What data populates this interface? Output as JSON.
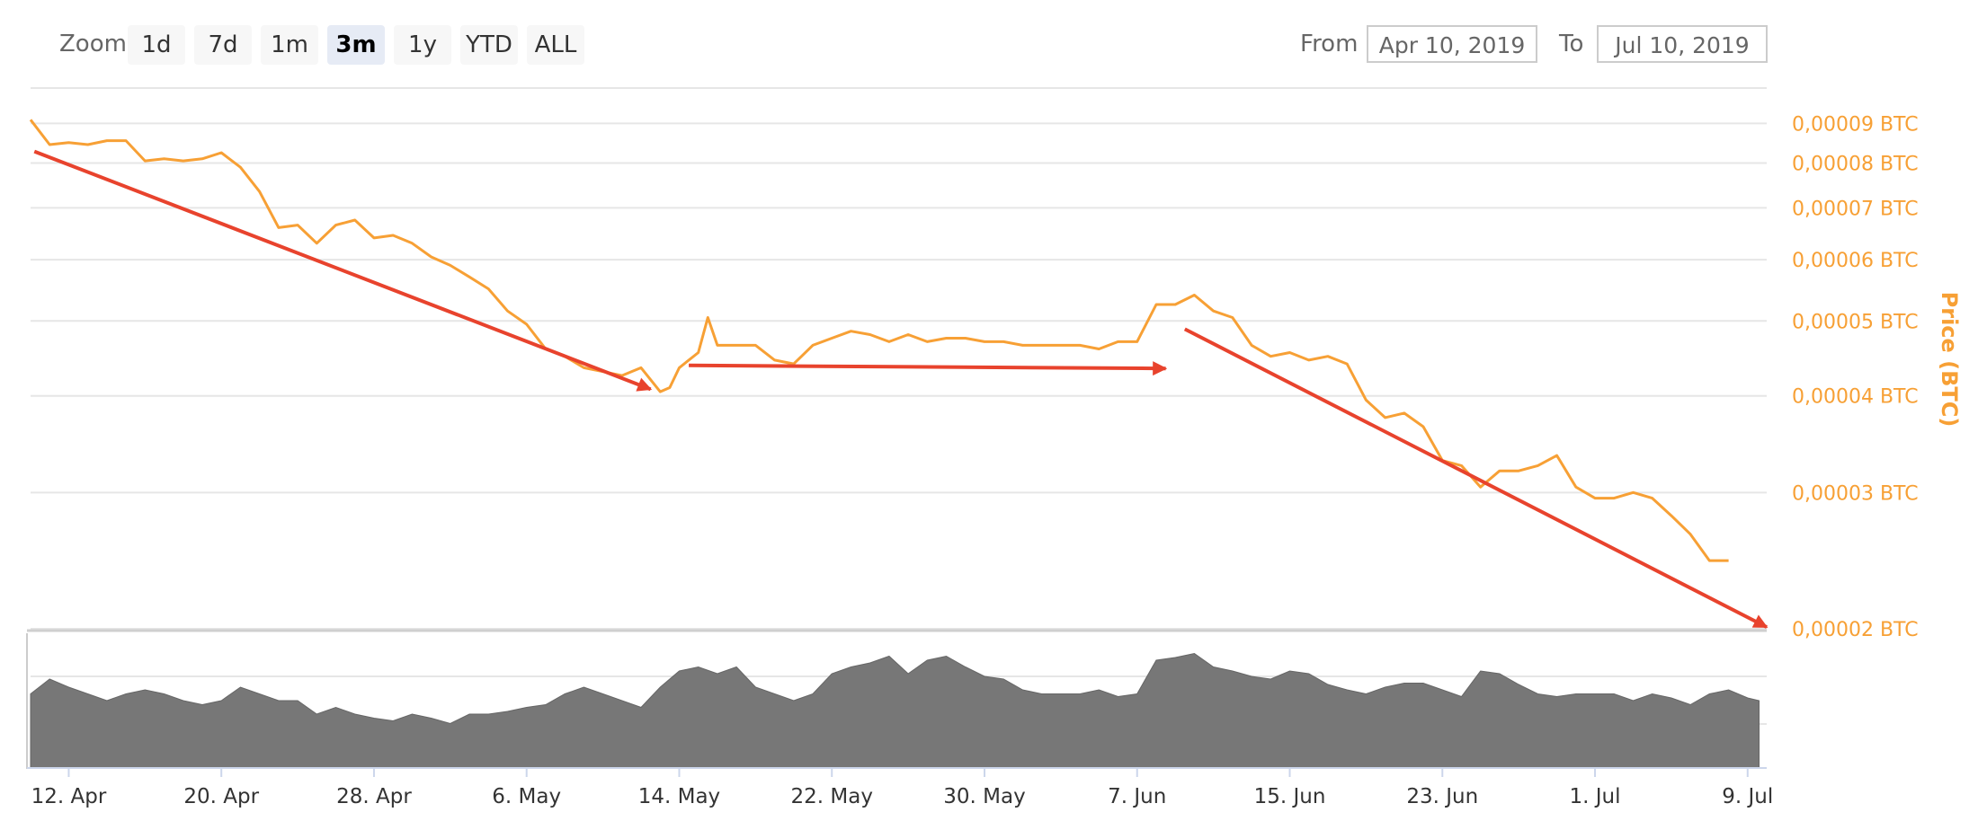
{
  "toolbar": {
    "zoom_label": "Zoom",
    "zoom_buttons": [
      "1d",
      "7d",
      "1m",
      "3m",
      "1y",
      "YTD",
      "ALL"
    ],
    "active_zoom": "3m",
    "from_label": "From",
    "from_value": "Apr 10, 2019",
    "to_label": "To",
    "to_value": "Jul 10, 2019"
  },
  "colors": {
    "price_line": "#f7a035",
    "volume": "#777777",
    "arrow": "#e8432d",
    "grid": "#e6e6e6"
  },
  "chart_data": {
    "type": "line",
    "scale": "log",
    "ylabel": "Price (BTC)",
    "y_ticks": [
      "0,00009 BTC",
      "0,00008 BTC",
      "0,00007 BTC",
      "0,00006 BTC",
      "0,00005 BTC",
      "0,00004 BTC",
      "0,00003 BTC",
      "0,00002 BTC"
    ],
    "y_tick_values": [
      9e-05,
      8e-05,
      7e-05,
      6e-05,
      5e-05,
      4e-05,
      3e-05,
      2e-05
    ],
    "ylim": [
      2e-05,
      0.0001
    ],
    "x_ticks": [
      "12. Apr",
      "20. Apr",
      "28. Apr",
      "6. May",
      "14. May",
      "22. May",
      "30. May",
      "7. Jun",
      "15. Jun",
      "23. Jun",
      "1. Jul",
      "9. Jul"
    ],
    "x_tick_days": [
      2,
      10,
      18,
      26,
      34,
      42,
      50,
      58,
      66,
      74,
      82,
      90
    ],
    "xlim_days": [
      0,
      91
    ],
    "series": [
      {
        "values_x_days": [
          0,
          1,
          2,
          3,
          4,
          5,
          6,
          7,
          8,
          9,
          10,
          11,
          12,
          13,
          14,
          15,
          16,
          17,
          18,
          19,
          20,
          21,
          22,
          23,
          24,
          25,
          26,
          27,
          28,
          29,
          30,
          31,
          32,
          33,
          33.5,
          34,
          35,
          35.5,
          36,
          37,
          38,
          39,
          40,
          41,
          42,
          43,
          44,
          45,
          46,
          47,
          48,
          49,
          50,
          51,
          52,
          53,
          54,
          55,
          56,
          57,
          58,
          59,
          60,
          61,
          62,
          63,
          64,
          65,
          66,
          67,
          68,
          69,
          70,
          71,
          72,
          73,
          74,
          75,
          76,
          77,
          78,
          79,
          80,
          81,
          82,
          83,
          84,
          85,
          86,
          87,
          88,
          89,
          90,
          90.6
        ],
        "values": [
          9.1e-05,
          8.45e-05,
          8.5e-05,
          8.45e-05,
          8.55e-05,
          8.55e-05,
          8.05e-05,
          8.1e-05,
          8.05e-05,
          8.1e-05,
          8.25e-05,
          7.9e-05,
          7.35e-05,
          6.6e-05,
          6.65e-05,
          6.3e-05,
          6.65e-05,
          6.75e-05,
          6.4e-05,
          6.45e-05,
          6.3e-05,
          6.05e-05,
          5.9e-05,
          5.7e-05,
          5.5e-05,
          5.15e-05,
          4.95e-05,
          4.6e-05,
          4.5e-05,
          4.35e-05,
          4.3e-05,
          4.25e-05,
          4.35e-05,
          4.05e-05,
          4.1e-05,
          4.35e-05,
          4.55e-05,
          5.05e-05,
          4.65e-05,
          4.65e-05,
          4.65e-05,
          4.45e-05,
          4.4e-05,
          4.65e-05,
          4.75e-05,
          4.85e-05,
          4.8e-05,
          4.7e-05,
          4.8e-05,
          4.7e-05,
          4.75e-05,
          4.75e-05,
          4.7e-05,
          4.7e-05,
          4.65e-05,
          4.65e-05,
          4.65e-05,
          4.65e-05,
          4.6e-05,
          4.7e-05,
          4.7e-05,
          5.25e-05,
          5.25e-05,
          5.4e-05,
          5.15e-05,
          5.05e-05,
          4.65e-05,
          4.5e-05,
          4.55e-05,
          4.45e-05,
          4.5e-05,
          4.4e-05,
          3.95e-05,
          3.75e-05,
          3.8e-05,
          3.65e-05,
          3.3e-05,
          3.25e-05,
          3.05e-05,
          3.2e-05,
          3.2e-05,
          3.25e-05,
          3.35e-05,
          3.05e-05,
          2.95e-05,
          2.95e-05,
          3e-05,
          2.95e-05,
          2.8e-05,
          2.65e-05,
          2.45e-05,
          2.45e-05
        ]
      }
    ],
    "volume": {
      "values_x_days": [
        0,
        1,
        2,
        3,
        4,
        5,
        6,
        7,
        8,
        9,
        10,
        11,
        12,
        13,
        14,
        15,
        16,
        17,
        18,
        19,
        20,
        21,
        22,
        23,
        24,
        25,
        26,
        27,
        28,
        29,
        30,
        31,
        32,
        33,
        34,
        35,
        36,
        37,
        38,
        39,
        40,
        41,
        42,
        43,
        44,
        45,
        46,
        47,
        48,
        49,
        50,
        51,
        52,
        53,
        54,
        55,
        56,
        57,
        58,
        59,
        60,
        61,
        62,
        63,
        64,
        65,
        66,
        67,
        68,
        69,
        70,
        71,
        72,
        73,
        74,
        75,
        76,
        77,
        78,
        79,
        80,
        81,
        82,
        83,
        84,
        85,
        86,
        87,
        88,
        89,
        90,
        90.6
      ],
      "values": [
        0.55,
        0.66,
        0.6,
        0.55,
        0.5,
        0.55,
        0.58,
        0.55,
        0.5,
        0.47,
        0.5,
        0.6,
        0.55,
        0.5,
        0.5,
        0.4,
        0.45,
        0.4,
        0.37,
        0.35,
        0.4,
        0.37,
        0.33,
        0.4,
        0.4,
        0.42,
        0.45,
        0.47,
        0.55,
        0.6,
        0.55,
        0.5,
        0.45,
        0.6,
        0.72,
        0.75,
        0.7,
        0.75,
        0.6,
        0.55,
        0.5,
        0.55,
        0.7,
        0.75,
        0.78,
        0.83,
        0.7,
        0.8,
        0.83,
        0.75,
        0.68,
        0.66,
        0.58,
        0.55,
        0.55,
        0.55,
        0.58,
        0.53,
        0.55,
        0.8,
        0.82,
        0.85,
        0.75,
        0.72,
        0.68,
        0.66,
        0.72,
        0.7,
        0.62,
        0.58,
        0.55,
        0.6,
        0.63,
        0.63,
        0.58,
        0.53,
        0.72,
        0.7,
        0.62,
        0.55,
        0.53,
        0.55,
        0.55,
        0.55,
        0.5,
        0.55,
        0.52,
        0.47,
        0.55,
        0.58,
        0.52,
        0.5
      ]
    },
    "annotations": [
      {
        "type": "arrow",
        "from": [
          0.2,
          8.28e-05
        ],
        "to": [
          32.5,
          4.08e-05
        ]
      },
      {
        "type": "arrow",
        "from": [
          34.5,
          4.38e-05
        ],
        "to": [
          59.5,
          4.34e-05
        ]
      },
      {
        "type": "arrow",
        "from": [
          60.5,
          4.88e-05
        ],
        "to": [
          91,
          2.01e-05
        ]
      }
    ]
  }
}
